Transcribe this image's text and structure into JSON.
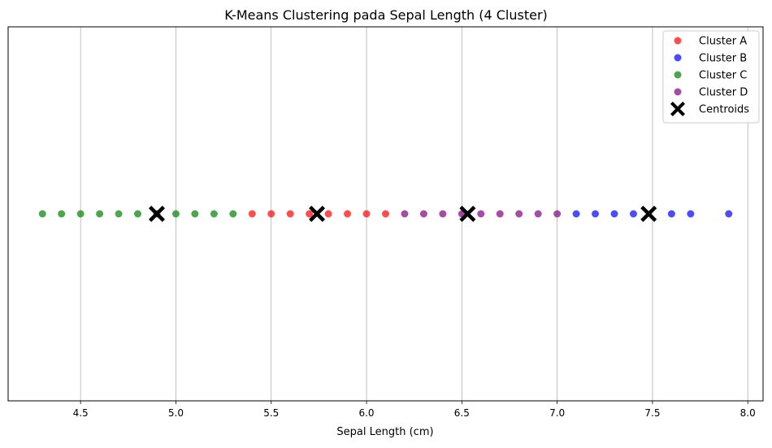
{
  "chart_data": {
    "type": "scatter",
    "title": "K-Means Clustering pada Sepal Length (4 Cluster)",
    "xlabel": "Sepal Length (cm)",
    "ylabel": "",
    "xlim": [
      4.12,
      8.08
    ],
    "xticks": [
      4.5,
      5.0,
      5.5,
      6.0,
      6.5,
      7.0,
      7.5,
      8.0
    ],
    "xtick_labels": [
      "4.5",
      "5.0",
      "5.5",
      "6.0",
      "6.5",
      "7.0",
      "7.5",
      "8.0"
    ],
    "y_value": 0,
    "grid": "vertical",
    "legend_position": "top-right",
    "series": [
      {
        "name": "Cluster A",
        "color": "#ff0000",
        "marker": "circle",
        "x": [
          5.4,
          5.5,
          5.6,
          5.7,
          5.8,
          5.9,
          6.0,
          6.1
        ]
      },
      {
        "name": "Cluster B",
        "color": "#0000ff",
        "marker": "circle",
        "x": [
          7.1,
          7.2,
          7.3,
          7.4,
          7.6,
          7.7,
          7.9
        ]
      },
      {
        "name": "Cluster C",
        "color": "#008000",
        "marker": "circle",
        "x": [
          4.3,
          4.4,
          4.5,
          4.6,
          4.7,
          4.8,
          4.9,
          5.0,
          5.1,
          5.2,
          5.3
        ]
      },
      {
        "name": "Cluster D",
        "color": "#800080",
        "marker": "circle",
        "x": [
          6.2,
          6.3,
          6.4,
          6.5,
          6.6,
          6.7,
          6.8,
          6.9,
          7.0
        ]
      },
      {
        "name": "Centroids",
        "color": "#000000",
        "marker": "x",
        "x": [
          4.9,
          5.74,
          6.53,
          7.48
        ]
      }
    ]
  }
}
